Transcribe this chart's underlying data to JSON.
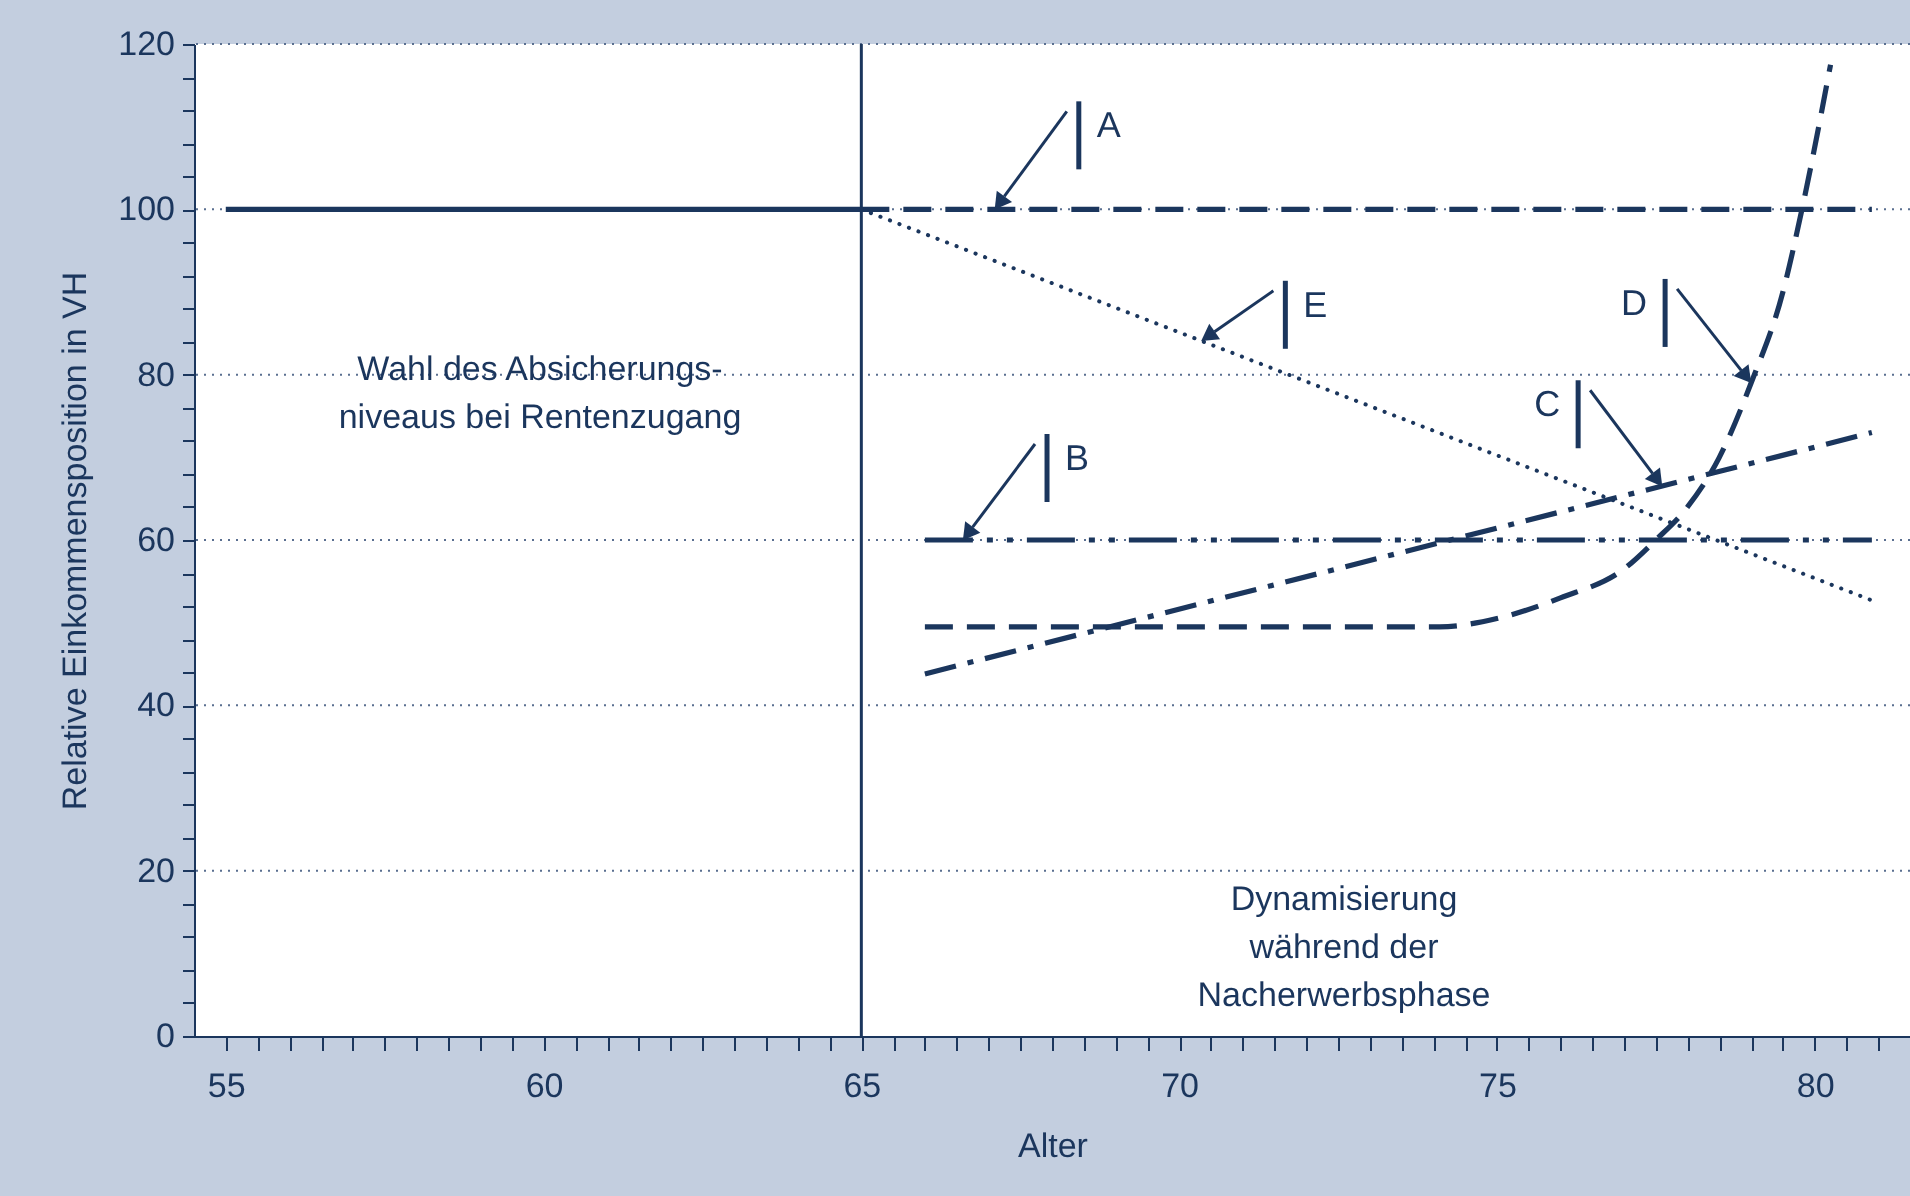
{
  "chart_data": {
    "type": "line",
    "xlabel": "Alter",
    "ylabel": "Relative Einkommensposition in VH",
    "xlim": [
      54.5,
      81.5
    ],
    "ylim": [
      0,
      120
    ],
    "xticks": [
      55,
      {
        "value": 55.5,
        "label": null
      },
      {
        "value": 56,
        "label": null
      },
      {
        "value": 56.5,
        "label": null
      },
      {
        "value": 57,
        "label": null
      },
      {
        "value": 57.5,
        "label": null
      },
      {
        "value": 58,
        "label": null
      },
      {
        "value": 58.5,
        "label": null
      },
      {
        "value": 59,
        "label": null
      },
      {
        "value": 59.5,
        "label": null
      },
      60,
      {
        "value": 60.5,
        "label": null
      },
      {
        "value": 61,
        "label": null
      },
      {
        "value": 61.5,
        "label": null
      },
      {
        "value": 62,
        "label": null
      },
      {
        "value": 62.5,
        "label": null
      },
      {
        "value": 63,
        "label": null
      },
      {
        "value": 63.5,
        "label": null
      },
      {
        "value": 64,
        "label": null
      },
      {
        "value": 64.5,
        "label": null
      },
      65,
      {
        "value": 65.5,
        "label": null
      },
      {
        "value": 66,
        "label": null
      },
      {
        "value": 66.5,
        "label": null
      },
      {
        "value": 67,
        "label": null
      },
      {
        "value": 67.5,
        "label": null
      },
      {
        "value": 68,
        "label": null
      },
      {
        "value": 68.5,
        "label": null
      },
      {
        "value": 69,
        "label": null
      },
      {
        "value": 69.5,
        "label": null
      },
      70,
      {
        "value": 70.5,
        "label": null
      },
      {
        "value": 71,
        "label": null
      },
      {
        "value": 71.5,
        "label": null
      },
      {
        "value": 72,
        "label": null
      },
      {
        "value": 72.5,
        "label": null
      },
      {
        "value": 73,
        "label": null
      },
      {
        "value": 73.5,
        "label": null
      },
      {
        "value": 74,
        "label": null
      },
      {
        "value": 74.5,
        "label": null
      },
      75,
      {
        "value": 75.5,
        "label": null
      },
      {
        "value": 76,
        "label": null
      },
      {
        "value": 76.5,
        "label": null
      },
      {
        "value": 77,
        "label": null
      },
      {
        "value": 77.5,
        "label": null
      },
      {
        "value": 78,
        "label": null
      },
      {
        "value": 78.5,
        "label": null
      },
      {
        "value": 79,
        "label": null
      },
      {
        "value": 79.5,
        "label": null
      },
      80,
      {
        "value": 80.5,
        "label": null
      },
      {
        "value": 81,
        "label": null
      }
    ],
    "yticks": [
      0,
      {
        "value": 4,
        "label": null
      },
      {
        "value": 8,
        "label": null
      },
      {
        "value": 12,
        "label": null
      },
      {
        "value": 16,
        "label": null
      },
      20,
      {
        "value": 24,
        "label": null
      },
      {
        "value": 28,
        "label": null
      },
      {
        "value": 32,
        "label": null
      },
      {
        "value": 36,
        "label": null
      },
      40,
      {
        "value": 44,
        "label": null
      },
      {
        "value": 48,
        "label": null
      },
      {
        "value": 52,
        "label": null
      },
      {
        "value": 56,
        "label": null
      },
      60,
      {
        "value": 64,
        "label": null
      },
      {
        "value": 68,
        "label": null
      },
      {
        "value": 72,
        "label": null
      },
      {
        "value": 76,
        "label": null
      },
      80,
      {
        "value": 84,
        "label": null
      },
      {
        "value": 88,
        "label": null
      },
      {
        "value": 92,
        "label": null
      },
      {
        "value": 96,
        "label": null
      },
      100,
      {
        "value": 104,
        "label": null
      },
      {
        "value": 108,
        "label": null
      },
      {
        "value": 112,
        "label": null
      },
      {
        "value": 116,
        "label": null
      },
      120
    ],
    "grid": "y",
    "marker": "none",
    "series": [
      {
        "color": "#1b365d",
        "line_style": "solid",
        "x": [
          55,
          65
        ],
        "values": [
          100,
          100
        ]
      },
      {
        "color": "#1b365d",
        "line_style": "dashed",
        "x": [
          65,
          80.9
        ],
        "values": [
          100,
          100
        ]
      },
      {
        "color": "#1b365d",
        "line_style": "dotted",
        "x": [
          65,
          80.9
        ],
        "values": [
          100,
          52.7
        ]
      },
      {
        "color": "#1b365d",
        "line_style": "dashdotdot",
        "x": [
          66,
          80.9
        ],
        "values": [
          60,
          60
        ]
      },
      {
        "color": "#1b365d",
        "line_style": "dashdot",
        "x": [
          66,
          80.9
        ],
        "values": [
          43.8,
          73
        ]
      },
      {
        "color": "#1b365d",
        "line_style": "dashed",
        "x": [
          66,
          74.1,
          75,
          76,
          77,
          77.5,
          78,
          78.5,
          79,
          79.5,
          79.8,
          80.25
        ],
        "values": [
          49.5,
          49.5,
          50.5,
          53,
          56.5,
          60,
          64,
          70,
          79,
          90,
          100,
          117.5
        ]
      }
    ],
    "ref_lines": [
      {
        "axis": "x",
        "value": 65,
        "color": "#1b365d"
      }
    ],
    "annotations": [
      {
        "text": "A",
        "x": 67.1,
        "y": 100
      },
      {
        "text": "E",
        "x": 70.35,
        "y": 84.1
      },
      {
        "text": "B",
        "x": 66.6,
        "y": 60
      },
      {
        "text": "C",
        "x": 77.6,
        "y": 66.5
      },
      {
        "text": "D",
        "x": 79,
        "y": 79
      },
      "Wahl des Absicherungs-\nniveaus bei Rentenzugang",
      "Dynamisierung\nwährend der\nNacherwerbsphase"
    ]
  }
}
